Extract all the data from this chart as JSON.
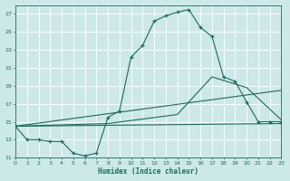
{
  "xlabel": "Humidex (Indice chaleur)",
  "xlim": [
    0,
    23
  ],
  "ylim": [
    11,
    28
  ],
  "yticks": [
    11,
    13,
    15,
    17,
    19,
    21,
    23,
    25,
    27
  ],
  "xticks": [
    0,
    1,
    2,
    3,
    4,
    5,
    6,
    7,
    8,
    9,
    10,
    11,
    12,
    13,
    14,
    15,
    16,
    17,
    18,
    19,
    20,
    21,
    22,
    23
  ],
  "bg_color": "#cce8e8",
  "grid_color": "#b8d8d8",
  "line_color": "#1a6b5e",
  "line1_x": [
    0,
    1,
    2,
    3,
    4,
    5,
    6,
    7,
    8,
    9,
    10,
    11,
    12,
    13,
    14,
    15,
    16,
    17,
    18,
    19,
    20,
    21,
    22,
    23
  ],
  "line1_y": [
    14.5,
    13.0,
    13.0,
    12.8,
    12.8,
    11.5,
    11.2,
    11.5,
    15.5,
    16.2,
    22.2,
    23.5,
    26.2,
    26.8,
    27.2,
    27.5,
    25.5,
    24.5,
    20.0,
    19.5,
    17.2,
    15.0,
    15.0,
    15.0
  ],
  "line2_x": [
    0,
    8,
    14,
    17,
    20,
    23
  ],
  "line2_y": [
    14.5,
    14.8,
    15.8,
    20.0,
    18.8,
    15.2
  ],
  "line3_x": [
    0,
    23
  ],
  "line3_y": [
    14.5,
    18.5
  ],
  "line4_x": [
    0,
    23
  ],
  "line4_y": [
    14.5,
    14.8
  ]
}
